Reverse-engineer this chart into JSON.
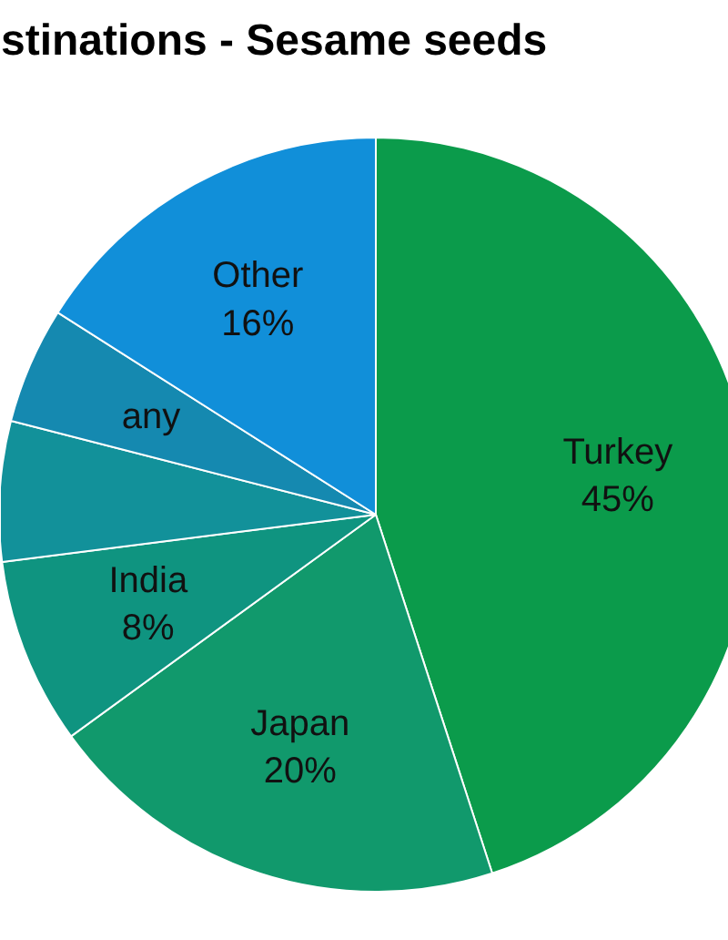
{
  "chart_data": {
    "type": "pie",
    "title": "stinations - Sesame seeds",
    "categories": [
      "Turkey",
      "Japan",
      "India",
      null,
      "any",
      "Other"
    ],
    "values": [
      45,
      20,
      8,
      6,
      5,
      16
    ],
    "value_labels": [
      "45%",
      "20%",
      "8%",
      null,
      null,
      "16%"
    ],
    "colors": [
      "#0b9b4b",
      "#11996c",
      "#0f9480",
      "#12919a",
      "#1589b0",
      "#118fd9"
    ]
  }
}
